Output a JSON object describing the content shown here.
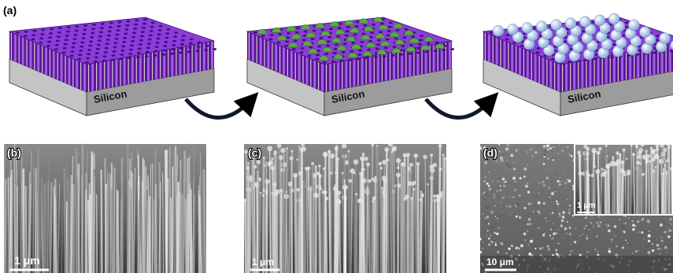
{
  "panel_a": {
    "label": "(a)",
    "substrate_labels": [
      "Silicon",
      "Silicon",
      "Silicon"
    ]
  },
  "panel_b": {
    "label": "(b)",
    "scale_bar": "1 μm"
  },
  "panel_c": {
    "label": "(c)",
    "scale_bar": "1 μm"
  },
  "panel_d": {
    "label": "(d)",
    "scale_bar": "10 μm",
    "inset_scale_bar": "1 μm"
  }
}
